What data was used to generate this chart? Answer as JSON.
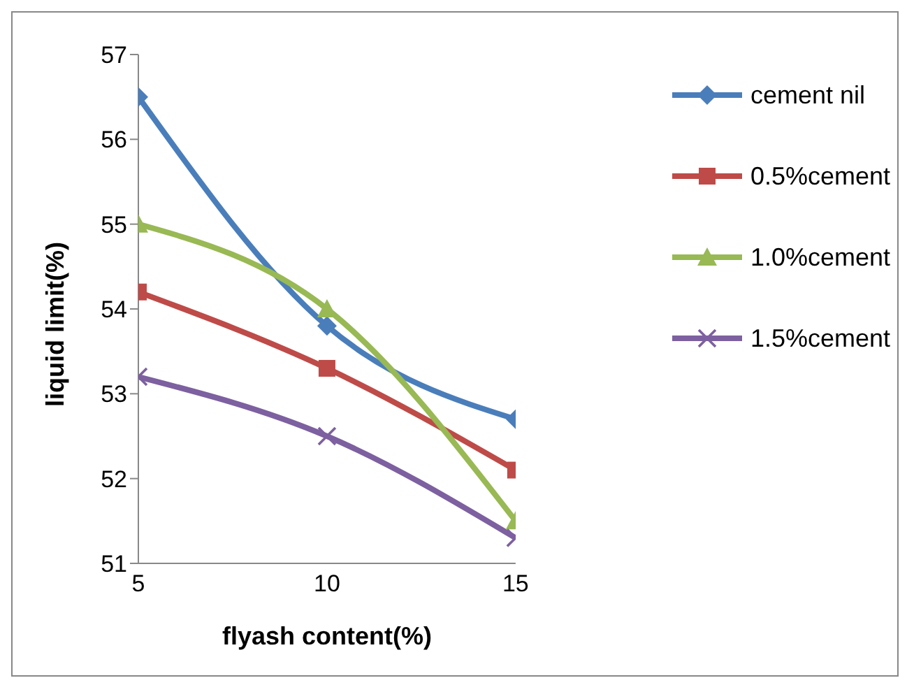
{
  "chart_data": {
    "type": "line",
    "xlabel": "flyash content(%)",
    "ylabel": "liquid limit(%)",
    "x": [
      5,
      10,
      15
    ],
    "xlim": [
      5,
      15
    ],
    "xticks": [
      5,
      10,
      15
    ],
    "ylim": [
      51,
      57
    ],
    "yticks": [
      51,
      52,
      53,
      54,
      55,
      56,
      57
    ],
    "grid": false,
    "legend": "top right",
    "series": [
      {
        "name": "cement nil",
        "color": "#4a7ebb",
        "marker": "diamond",
        "values": [
          56.5,
          53.8,
          52.7
        ]
      },
      {
        "name": "0.5%cement",
        "color": "#be4b48",
        "marker": "square",
        "values": [
          54.2,
          53.3,
          52.1
        ]
      },
      {
        "name": "1.0%cement",
        "color": "#98b954",
        "marker": "triangle",
        "values": [
          55.0,
          54.0,
          51.5
        ]
      },
      {
        "name": "1.5%cement",
        "color": "#7d60a0",
        "marker": "cross",
        "values": [
          53.2,
          52.5,
          51.3
        ]
      }
    ]
  }
}
